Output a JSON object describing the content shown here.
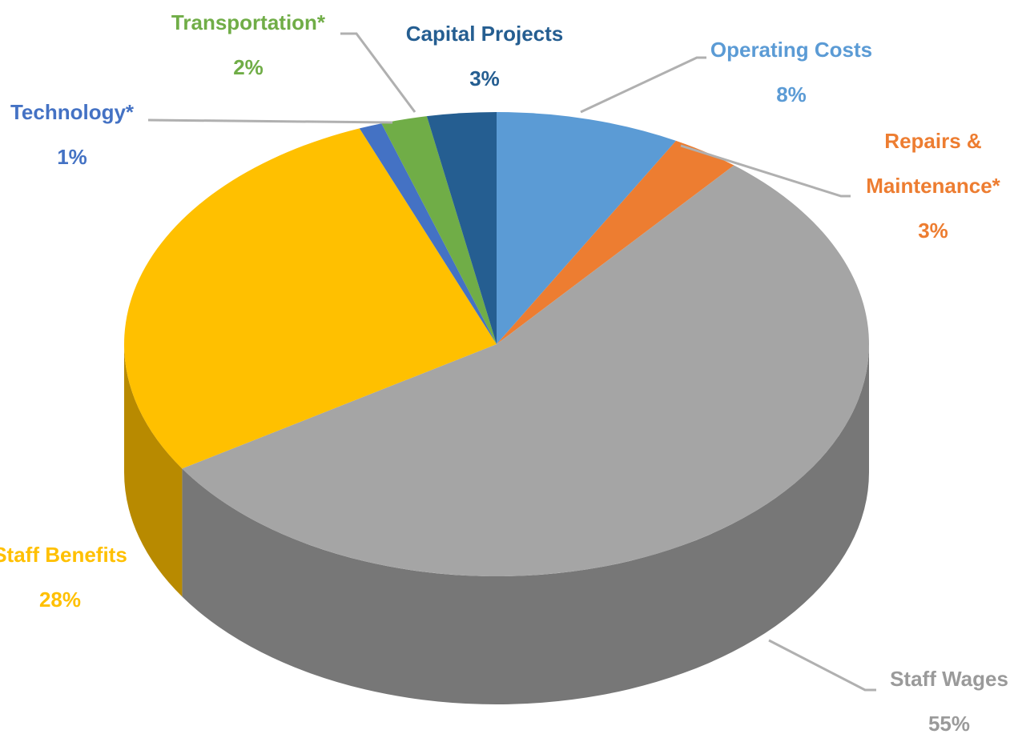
{
  "chart_data": {
    "type": "pie",
    "categories": [
      "Operating Costs",
      "Repairs & Maintenance*",
      "Staff Wages",
      "Staff Benefits",
      "Technology*",
      "Transportation*",
      "Capital Projects"
    ],
    "values": [
      8,
      3,
      55,
      28,
      1,
      2,
      3
    ],
    "value_labels": [
      "8%",
      "3%",
      "55%",
      "28%",
      "1%",
      "2%",
      "3%"
    ],
    "colors": [
      "#5b9bd5",
      "#ed7d31",
      "#a5a5a5",
      "#ffc000",
      "#4472c4",
      "#70ad47",
      "#255e91"
    ]
  }
}
